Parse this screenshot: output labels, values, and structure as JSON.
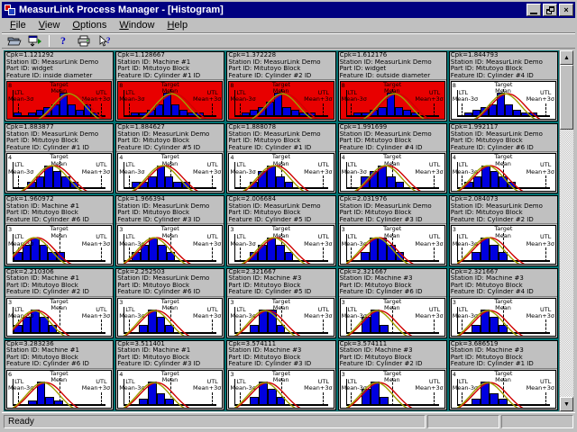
{
  "window": {
    "title": "MeasurLink Process Manager - [Histogram]",
    "controls": {
      "minimize": "minimize",
      "restore": "restore",
      "close": "close"
    }
  },
  "menu": {
    "items": [
      "File",
      "View",
      "Options",
      "Window",
      "Help"
    ]
  },
  "toolbar": {
    "buttons": [
      "open-icon",
      "window-switch-icon",
      "help-icon",
      "print-icon",
      "context-help-icon"
    ]
  },
  "statusbar": {
    "text": "Ready"
  },
  "colors": {
    "titlebar": "#000080",
    "workspace": "#007272",
    "alarm_chart": "#e80000",
    "normal_chart": "#ffffff",
    "bar": "#0000e0",
    "curve1": "#a0a000",
    "curve2": "#d00000",
    "chrome": "#c0c0c0"
  },
  "labels": {
    "ltl": "LTL",
    "utl": "UTL",
    "target": "Target",
    "mean": "Mean",
    "mean_minus": "Mean-3σ",
    "mean_plus": "Mean+3σ",
    "cpk_prefix": "Cpk=",
    "station_prefix": "Station ID: ",
    "part_prefix": "Part ID: ",
    "feature_prefix": "Feature ID: "
  },
  "panels": [
    {
      "cpk": "1.121292",
      "station": "MeasurLink Demo",
      "part": "widget",
      "feature": "inside diameter",
      "alarm": true,
      "ymax": 8,
      "bars": [
        1,
        0,
        1,
        2,
        3,
        4,
        8,
        4,
        2,
        4,
        1,
        0
      ]
    },
    {
      "cpk": "1.128667",
      "station": "Machine #1",
      "part": "Mitutoyo Block",
      "feature": "Cylinder #1 ID",
      "alarm": true,
      "ymax": 8,
      "bars": [
        0,
        1,
        1,
        2,
        4,
        8,
        4,
        2,
        1,
        1,
        0,
        0
      ]
    },
    {
      "cpk": "1.372228",
      "station": "MeasurLink Demo",
      "part": "Mitutoyo Block",
      "feature": "Cylinder #2 ID",
      "alarm": true,
      "ymax": 8,
      "bars": [
        0,
        1,
        2,
        3,
        5,
        8,
        3,
        2,
        1,
        1,
        0,
        0
      ]
    },
    {
      "cpk": "1.612176",
      "station": "MeasurLink Demo",
      "part": "widget",
      "feature": "outside diameter",
      "alarm": true,
      "ymax": 8,
      "bars": [
        0,
        1,
        1,
        2,
        3,
        8,
        3,
        2,
        1,
        0,
        0,
        0
      ]
    },
    {
      "cpk": "1.844793",
      "station": "MeasurLink Demo",
      "part": "Mitutoyo Block",
      "feature": "Cylinder #4 ID",
      "alarm": false,
      "ymax": 8,
      "bars": [
        0,
        1,
        2,
        3,
        4,
        8,
        4,
        2,
        1,
        1,
        0,
        0
      ]
    },
    {
      "cpk": "1.883877",
      "station": "MeasurLink Demo",
      "part": "Mitutoyo Block",
      "feature": "Cylinder #1 ID",
      "alarm": false,
      "ymax": 4,
      "bars": [
        0,
        0,
        1,
        2,
        4,
        3,
        2,
        1,
        0,
        0,
        0,
        0
      ]
    },
    {
      "cpk": "1.884627",
      "station": "MeasurLink Demo",
      "part": "Mitutoyo Block",
      "feature": "Cylinder #5 ID",
      "alarm": false,
      "ymax": 4,
      "bars": [
        0,
        1,
        1,
        2,
        4,
        2,
        1,
        1,
        0,
        0,
        0,
        0
      ]
    },
    {
      "cpk": "1.888078",
      "station": "MeasurLink Demo",
      "part": "Mitutoyo Block",
      "feature": "Cylinder #1 ID",
      "alarm": false,
      "ymax": 4,
      "bars": [
        0,
        0,
        1,
        3,
        4,
        2,
        1,
        0,
        0,
        0,
        0,
        0
      ]
    },
    {
      "cpk": "1.991699",
      "station": "MeasurLink Demo",
      "part": "Mitutoyo Block",
      "feature": "Cylinder #4 ID",
      "alarm": false,
      "ymax": 4,
      "bars": [
        0,
        0,
        2,
        3,
        4,
        2,
        1,
        0,
        0,
        0,
        0,
        0
      ]
    },
    {
      "cpk": "1.992117",
      "station": "MeasurLink Demo",
      "part": "Mitutoyo Block",
      "feature": "Cylinder #6 ID",
      "alarm": false,
      "ymax": 4,
      "bars": [
        0,
        1,
        2,
        4,
        3,
        2,
        1,
        0,
        0,
        0,
        0,
        0
      ]
    },
    {
      "cpk": "1.960972",
      "station": "Machine #1",
      "part": "Mitutoyo Block",
      "feature": "Cylinder #6 ID",
      "alarm": false,
      "ymax": 3,
      "bars": [
        1,
        2,
        3,
        2,
        1,
        1,
        0,
        0,
        0,
        0,
        0,
        0
      ]
    },
    {
      "cpk": "1.966394",
      "station": "MeasurLink Demo",
      "part": "Mitutoyo Block",
      "feature": "Cylinder #3 ID",
      "alarm": false,
      "ymax": 3,
      "bars": [
        0,
        1,
        2,
        3,
        2,
        1,
        0,
        0,
        0,
        0,
        0,
        0
      ]
    },
    {
      "cpk": "2.006684",
      "station": "MeasurLink Demo",
      "part": "Mitutoyo Block",
      "feature": "Cylinder #5 ID",
      "alarm": false,
      "ymax": 3,
      "bars": [
        0,
        0,
        1,
        2,
        3,
        2,
        1,
        0,
        0,
        0,
        0,
        0
      ]
    },
    {
      "cpk": "2.031976",
      "station": "MeasurLink Demo",
      "part": "Mitutoyo Block",
      "feature": "Cylinder #3 ID",
      "alarm": false,
      "ymax": 3,
      "bars": [
        0,
        0,
        1,
        3,
        3,
        2,
        1,
        0,
        0,
        0,
        0,
        0
      ]
    },
    {
      "cpk": "2.084073",
      "station": "MeasurLink Demo",
      "part": "Mitutoyo Block",
      "feature": "Cylinder #2 ID",
      "alarm": false,
      "ymax": 3,
      "bars": [
        0,
        0,
        1,
        3,
        2,
        1,
        0,
        0,
        0,
        0,
        0,
        0
      ]
    },
    {
      "cpk": "2.210306",
      "station": "Machine #1",
      "part": "Mitutoyo Block",
      "feature": "Cylinder #2 ID",
      "alarm": false,
      "ymax": 3,
      "bars": [
        1,
        2,
        3,
        2,
        1,
        0,
        0,
        0,
        0,
        0,
        0,
        0
      ]
    },
    {
      "cpk": "2.252503",
      "station": "MeasurLink Demo",
      "part": "Mitutoyo Block",
      "feature": "Cylinder #6 ID",
      "alarm": false,
      "ymax": 3,
      "bars": [
        0,
        0,
        1,
        3,
        2,
        1,
        0,
        0,
        0,
        0,
        0,
        0
      ]
    },
    {
      "cpk": "2.321667",
      "station": "Machine #3",
      "part": "Mitutoyo Block",
      "feature": "Cylinder #5 ID",
      "alarm": false,
      "ymax": 3,
      "bars": [
        0,
        0,
        1,
        3,
        3,
        1,
        0,
        0,
        0,
        0,
        0,
        0
      ]
    },
    {
      "cpk": "2.321667",
      "station": "Machine #3",
      "part": "Mitutoyo Block",
      "feature": "Cylinder #6 ID",
      "alarm": false,
      "ymax": 3,
      "bars": [
        0,
        0,
        2,
        3,
        1,
        0,
        0,
        0,
        0,
        0,
        0,
        0
      ]
    },
    {
      "cpk": "2.321667",
      "station": "Machine #3",
      "part": "Mitutoyo Block",
      "feature": "Cylinder #4 ID",
      "alarm": false,
      "ymax": 3,
      "bars": [
        0,
        0,
        1,
        3,
        2,
        1,
        0,
        0,
        0,
        0,
        0,
        0
      ]
    },
    {
      "cpk": "3.283236",
      "station": "Machine #1",
      "part": "Mitutoyo Block",
      "feature": "Cylinder #6 ID",
      "alarm": false,
      "ymax": 6,
      "bars": [
        0,
        0,
        1,
        6,
        2,
        1,
        0,
        0,
        0,
        0,
        0,
        0
      ]
    },
    {
      "cpk": "3.511401",
      "station": "Machine #1",
      "part": "Mitutoyo Block",
      "feature": "Cylinder #3 ID",
      "alarm": false,
      "ymax": 4,
      "bars": [
        0,
        0,
        1,
        4,
        2,
        1,
        0,
        0,
        0,
        0,
        0,
        0
      ]
    },
    {
      "cpk": "3.574111",
      "station": "Machine #3",
      "part": "Mitutoyo Block",
      "feature": "Cylinder #3 ID",
      "alarm": false,
      "ymax": 3,
      "bars": [
        0,
        0,
        1,
        3,
        2,
        1,
        0,
        0,
        0,
        0,
        0,
        0
      ]
    },
    {
      "cpk": "3.574111",
      "station": "Machine #3",
      "part": "Mitutoyo Block",
      "feature": "Cylinder #2 ID",
      "alarm": false,
      "ymax": 3,
      "bars": [
        0,
        0,
        2,
        3,
        1,
        0,
        0,
        0,
        0,
        0,
        0,
        0
      ]
    },
    {
      "cpk": "3.686519",
      "station": "Machine #3",
      "part": "Mitutoyo Block",
      "feature": "Cylinder #1 ID",
      "alarm": false,
      "ymax": 4,
      "bars": [
        0,
        0,
        1,
        4,
        2,
        1,
        0,
        0,
        0,
        0,
        0,
        0
      ]
    }
  ]
}
